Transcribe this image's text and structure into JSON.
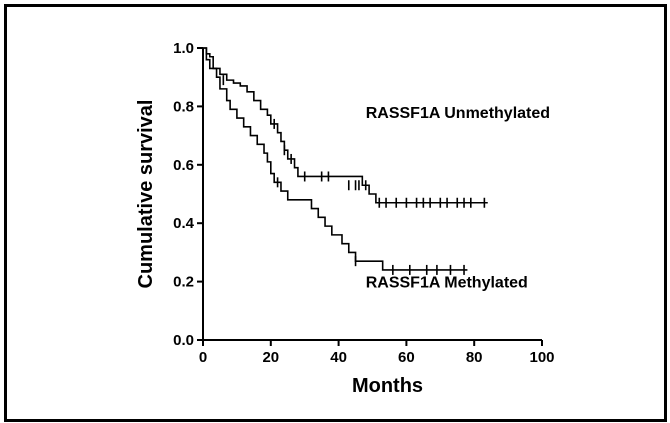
{
  "chart_data": {
    "type": "line",
    "xlabel": "Months",
    "ylabel": "Cumulative survival",
    "xlim": [
      0,
      100
    ],
    "ylim": [
      0.0,
      1.0
    ],
    "x_ticks": [
      "0",
      "20",
      "40",
      "60",
      "80",
      "100"
    ],
    "y_ticks": [
      "0.0",
      "0.2",
      "0.4",
      "0.6",
      "0.8",
      "1.0"
    ],
    "grid": false,
    "legend": "none",
    "series": [
      {
        "name": "RASSF1A Unmethylated",
        "step": [
          [
            0,
            1.0
          ],
          [
            1,
            0.98
          ],
          [
            2,
            0.97
          ],
          [
            3,
            0.93
          ],
          [
            5,
            0.91
          ],
          [
            7,
            0.89
          ],
          [
            9,
            0.88
          ],
          [
            11,
            0.87
          ],
          [
            13,
            0.85
          ],
          [
            15,
            0.82
          ],
          [
            17,
            0.79
          ],
          [
            19,
            0.77
          ],
          [
            20,
            0.74
          ],
          [
            22,
            0.71
          ],
          [
            23,
            0.68
          ],
          [
            24,
            0.65
          ],
          [
            25,
            0.62
          ],
          [
            27,
            0.59
          ],
          [
            28,
            0.56
          ],
          [
            47,
            0.53
          ],
          [
            49,
            0.5
          ],
          [
            51,
            0.47
          ],
          [
            84,
            0.47
          ]
        ],
        "censored": [
          [
            6,
            0.89
          ],
          [
            21,
            0.74
          ],
          [
            24,
            0.65
          ],
          [
            26,
            0.62
          ],
          [
            30,
            0.56
          ],
          [
            35,
            0.56
          ],
          [
            37,
            0.56
          ],
          [
            43,
            0.53
          ],
          [
            45,
            0.53
          ],
          [
            46,
            0.53
          ],
          [
            48,
            0.53
          ],
          [
            52,
            0.47
          ],
          [
            54,
            0.47
          ],
          [
            57,
            0.47
          ],
          [
            60,
            0.47
          ],
          [
            63,
            0.47
          ],
          [
            65,
            0.47
          ],
          [
            67,
            0.47
          ],
          [
            70,
            0.47
          ],
          [
            72,
            0.47
          ],
          [
            75,
            0.47
          ],
          [
            77,
            0.47
          ],
          [
            79,
            0.47
          ],
          [
            83,
            0.47
          ]
        ]
      },
      {
        "name": "RASSF1A Methylated",
        "step": [
          [
            0,
            1.0
          ],
          [
            1,
            0.96
          ],
          [
            2,
            0.93
          ],
          [
            4,
            0.9
          ],
          [
            5,
            0.86
          ],
          [
            7,
            0.82
          ],
          [
            8,
            0.79
          ],
          [
            10,
            0.76
          ],
          [
            12,
            0.73
          ],
          [
            14,
            0.7
          ],
          [
            16,
            0.67
          ],
          [
            18,
            0.64
          ],
          [
            19,
            0.61
          ],
          [
            20,
            0.57
          ],
          [
            21,
            0.54
          ],
          [
            23,
            0.51
          ],
          [
            25,
            0.48
          ],
          [
            32,
            0.45
          ],
          [
            34,
            0.42
          ],
          [
            36,
            0.39
          ],
          [
            38,
            0.36
          ],
          [
            41,
            0.33
          ],
          [
            43,
            0.3
          ],
          [
            45,
            0.27
          ],
          [
            53,
            0.24
          ],
          [
            78,
            0.24
          ]
        ],
        "censored": [
          [
            22,
            0.54
          ],
          [
            45,
            0.27
          ],
          [
            56,
            0.24
          ],
          [
            61,
            0.24
          ],
          [
            66,
            0.24
          ],
          [
            69,
            0.24
          ],
          [
            73,
            0.24
          ],
          [
            77,
            0.24
          ]
        ]
      }
    ],
    "annotations": [
      {
        "text": "RASSF1A Unmethylated",
        "x": 48,
        "y": 0.76
      },
      {
        "text": "RASSF1A Methylated",
        "x": 48,
        "y": 0.18
      }
    ]
  }
}
